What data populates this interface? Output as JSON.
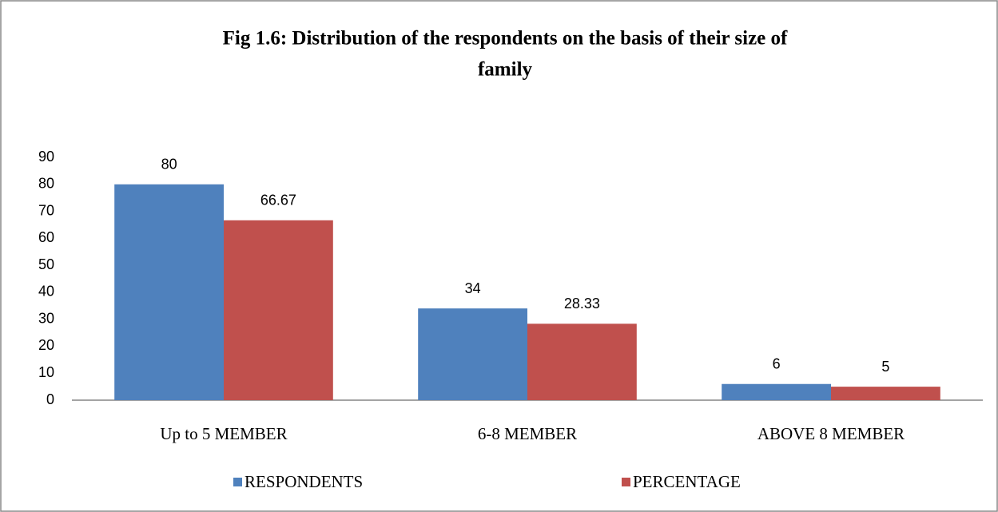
{
  "chart_data": {
    "type": "bar",
    "title": [
      "Fig 1.6: Distribution of the respondents on the basis of their size of",
      "family"
    ],
    "categories": [
      "Up to 5 MEMBER",
      "6-8 MEMBER",
      "ABOVE 8 MEMBER"
    ],
    "series": [
      {
        "name": "RESPONDENTS",
        "color": "#4f81bd",
        "values": [
          80,
          34,
          6
        ]
      },
      {
        "name": "PERCENTAGE",
        "color": "#c0504d",
        "values": [
          66.67,
          28.33,
          5
        ]
      }
    ],
    "ylim": [
      0,
      90
    ],
    "yticks": [
      0,
      10,
      20,
      30,
      40,
      50,
      60,
      70,
      80,
      90
    ],
    "grid": false,
    "legend": "bottom"
  }
}
